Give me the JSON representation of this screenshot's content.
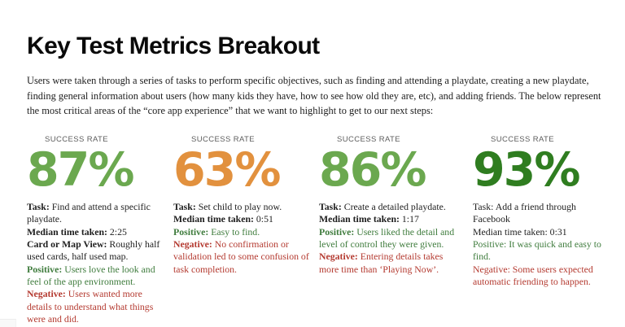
{
  "title": "Key Test Metrics Breakout",
  "intro": "Users were taken through a series of tasks to perform specific objectives, such as finding and attending a playdate, creating a new playdate, finding general information about users (how many kids they have, how to see how old they are, etc), and adding friends. The below represent the most critical areas of the “core app experience” that we want to highlight to get to our next steps:",
  "colors": {
    "rate_green_light": "#6ba84f",
    "rate_orange": "#e2913e",
    "rate_green_dark": "#2f7d20",
    "positive_text": "#3f7c3d",
    "negative_text": "#b43a30",
    "rate_label_gray": "#5d5d5d",
    "body_text": "#1e1e1e"
  },
  "metrics": [
    {
      "label": "SUCCESS RATE",
      "value": "87%",
      "value_color": "#6ba84f",
      "bold_labels": true,
      "details": [
        {
          "label": "Task:",
          "text": "Find and attend a specific playdate.",
          "tone": "default"
        },
        {
          "label": "Median time taken:",
          "text": "2:25",
          "tone": "default"
        },
        {
          "label": "Card or Map View:",
          "text": "Roughly half used cards, half used map.",
          "tone": "default"
        },
        {
          "label": "Positive:",
          "text": "Users love the look and feel of the app environment.",
          "tone": "positive"
        },
        {
          "label": "Negative:",
          "text": "Users wanted more details to understand what things were and did.",
          "tone": "negative"
        }
      ]
    },
    {
      "label": "SUCCESS RATE",
      "value": "63%",
      "value_color": "#e2913e",
      "bold_labels": true,
      "details": [
        {
          "label": "Task:",
          "text": "Set child to play now.",
          "tone": "default"
        },
        {
          "label": "Median time taken:",
          "text": "0:51",
          "tone": "default"
        },
        {
          "label": "Positive:",
          "text": "Easy to find.",
          "tone": "positive"
        },
        {
          "label": "Negative:",
          "text": "No confirmation or validation led to some confusion of task completion.",
          "tone": "negative"
        }
      ]
    },
    {
      "label": "SUCCESS RATE",
      "value": "86%",
      "value_color": "#6ba84f",
      "bold_labels": true,
      "details": [
        {
          "label": "Task:",
          "text": "Create a detailed playdate.",
          "tone": "default"
        },
        {
          "label": "Median time taken:",
          "text": "1:17",
          "tone": "default"
        },
        {
          "label": "Positive:",
          "text": "Users liked the detail and level of control they were given.",
          "tone": "positive"
        },
        {
          "label": "Negative:",
          "text": "Entering details takes more time than ‘Playing Now’.",
          "tone": "negative"
        }
      ]
    },
    {
      "label": "SUCCESS RATE",
      "value": "93%",
      "value_color": "#2f7d20",
      "bold_labels": false,
      "details": [
        {
          "label": "Task:",
          "text": "Add a friend through Facebook",
          "tone": "default"
        },
        {
          "label": "Median time taken:",
          "text": "0:31",
          "tone": "default"
        },
        {
          "label": "Positive:",
          "text": "It was quick and easy to find.",
          "tone": "positive"
        },
        {
          "label": "Negative:",
          "text": "Some users expected automatic friending to happen.",
          "tone": "negative"
        }
      ]
    }
  ]
}
